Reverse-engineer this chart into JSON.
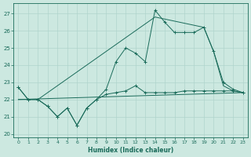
{
  "xlabel": "Humidex (Indice chaleur)",
  "xlim": [
    -0.5,
    23.5
  ],
  "ylim": [
    19.8,
    27.6
  ],
  "yticks": [
    20,
    21,
    22,
    23,
    24,
    25,
    26,
    27
  ],
  "xticks": [
    0,
    1,
    2,
    3,
    4,
    5,
    6,
    7,
    8,
    9,
    10,
    11,
    12,
    13,
    14,
    15,
    16,
    17,
    18,
    19,
    20,
    21,
    22,
    23
  ],
  "bg_color": "#cce8e0",
  "grid_color": "#b0d4cc",
  "line_color": "#1a6b5a",
  "line_jagged_x": [
    0,
    1,
    2,
    3,
    4,
    5,
    6,
    7,
    8,
    9,
    10,
    11,
    12,
    13,
    14,
    15,
    16,
    17,
    18,
    19,
    20,
    21,
    22,
    23
  ],
  "line_jagged_y": [
    22.7,
    22.0,
    22.0,
    21.6,
    21.0,
    21.5,
    20.5,
    21.5,
    22.0,
    22.3,
    22.4,
    22.5,
    22.8,
    22.4,
    22.4,
    22.4,
    22.4,
    22.5,
    22.5,
    22.5,
    22.5,
    22.5,
    22.5,
    22.4
  ],
  "line_mid_x": [
    0,
    1,
    2,
    3,
    4,
    5,
    6,
    7,
    8,
    9,
    10,
    11,
    12,
    13,
    14,
    15,
    16,
    17,
    18,
    19,
    20,
    21,
    22,
    23
  ],
  "line_mid_y": [
    22.7,
    22.0,
    22.0,
    21.6,
    21.0,
    21.5,
    20.5,
    21.5,
    22.0,
    22.6,
    24.2,
    25.0,
    24.7,
    24.2,
    27.2,
    26.5,
    25.9,
    25.9,
    25.9,
    26.2,
    24.8,
    23.0,
    22.6,
    22.4
  ],
  "line_upper_x": [
    0,
    2,
    14,
    19,
    20,
    21,
    22,
    23
  ],
  "line_upper_y": [
    22.0,
    22.0,
    26.8,
    26.2,
    24.8,
    22.8,
    22.5,
    22.4
  ],
  "line_trend_x": [
    0,
    23
  ],
  "line_trend_y": [
    22.0,
    22.4
  ]
}
